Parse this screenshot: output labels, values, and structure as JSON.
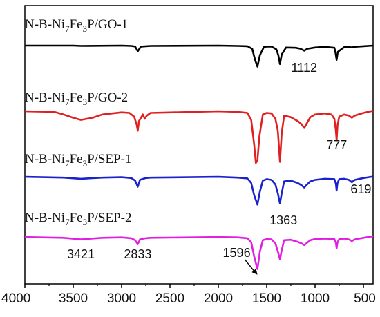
{
  "chart_data": {
    "type": "line",
    "title": "",
    "xlabel": "",
    "ylabel": "",
    "xlim": [
      4000,
      400
    ],
    "x_reversed": true,
    "x_ticks": [
      4000,
      3500,
      3000,
      2500,
      2000,
      1500,
      1000,
      500
    ],
    "y_ticks_shown": false,
    "grid": false,
    "legend": "labels-above-each-trace",
    "series": [
      {
        "label_parts": [
          "N-B-Ni",
          "7",
          "Fe",
          "3",
          "P/GO-1"
        ],
        "color": "#000000",
        "x": [
          4000,
          3500,
          3421,
          3000,
          2900,
          2860,
          2833,
          2800,
          2700,
          2000,
          1800,
          1700,
          1650,
          1620,
          1596,
          1570,
          1530,
          1500,
          1450,
          1400,
          1380,
          1363,
          1345,
          1300,
          1200,
          1150,
          1112,
          1080,
          1000,
          900,
          800,
          790,
          777,
          765,
          700,
          650,
          619,
          600,
          500,
          400
        ],
        "y": [
          1.0,
          1.0,
          0.99,
          1.0,
          0.99,
          0.97,
          0.82,
          0.97,
          0.99,
          1.0,
          0.99,
          0.98,
          0.9,
          0.55,
          0.34,
          0.7,
          0.95,
          0.97,
          0.97,
          0.88,
          0.7,
          0.42,
          0.72,
          0.94,
          0.93,
          0.9,
          0.84,
          0.9,
          0.94,
          0.96,
          0.93,
          0.8,
          0.55,
          0.8,
          0.95,
          0.96,
          0.94,
          0.96,
          0.98,
          1.0
        ]
      },
      {
        "label_parts": [
          "N-B-Ni",
          "7",
          "Fe",
          "3",
          "P/GO-2"
        ],
        "color": "#e02020",
        "x": [
          4000,
          3700,
          3600,
          3500,
          3421,
          3300,
          3200,
          3000,
          2920,
          2870,
          2845,
          2833,
          2820,
          2780,
          2760,
          2740,
          2700,
          2000,
          1800,
          1700,
          1660,
          1630,
          1612,
          1596,
          1575,
          1540,
          1500,
          1450,
          1410,
          1385,
          1363,
          1345,
          1320,
          1250,
          1180,
          1140,
          1112,
          1090,
          1050,
          1000,
          900,
          830,
          800,
          785,
          777,
          768,
          750,
          700,
          650,
          619,
          590,
          500,
          400
        ],
        "y": [
          0.96,
          0.95,
          0.9,
          0.84,
          0.8,
          0.84,
          0.9,
          0.94,
          0.93,
          0.86,
          0.72,
          0.6,
          0.78,
          0.9,
          0.82,
          0.88,
          0.93,
          0.96,
          0.95,
          0.93,
          0.8,
          0.35,
          0.0,
          0.05,
          0.5,
          0.9,
          0.93,
          0.92,
          0.82,
          0.6,
          0.02,
          0.55,
          0.88,
          0.85,
          0.78,
          0.72,
          0.65,
          0.72,
          0.85,
          0.9,
          0.92,
          0.9,
          0.82,
          0.6,
          0.42,
          0.7,
          0.86,
          0.9,
          0.88,
          0.84,
          0.88,
          0.93,
          0.97
        ]
      },
      {
        "label_parts": [
          "N-B-Ni",
          "7",
          "Fe",
          "3",
          "P/SEP-1"
        ],
        "color": "#1a22cc",
        "x": [
          4000,
          3600,
          3421,
          3200,
          3000,
          2900,
          2860,
          2833,
          2810,
          2750,
          2700,
          2000,
          1800,
          1700,
          1660,
          1630,
          1596,
          1570,
          1540,
          1500,
          1450,
          1410,
          1385,
          1363,
          1345,
          1320,
          1250,
          1180,
          1140,
          1112,
          1090,
          1050,
          1000,
          900,
          800,
          785,
          777,
          768,
          750,
          700,
          650,
          619,
          590,
          500,
          400
        ],
        "y": [
          0.98,
          0.96,
          0.93,
          0.96,
          0.97,
          0.95,
          0.88,
          0.72,
          0.9,
          0.95,
          0.96,
          0.98,
          0.96,
          0.94,
          0.82,
          0.5,
          0.25,
          0.6,
          0.88,
          0.92,
          0.9,
          0.78,
          0.55,
          0.28,
          0.55,
          0.86,
          0.88,
          0.82,
          0.76,
          0.7,
          0.76,
          0.86,
          0.9,
          0.93,
          0.92,
          0.8,
          0.62,
          0.82,
          0.92,
          0.93,
          0.9,
          0.84,
          0.9,
          0.95,
          0.99
        ]
      },
      {
        "label_parts": [
          "N-B-Ni",
          "7",
          "Fe",
          "3",
          "P/SEP-2"
        ],
        "color": "#e020e0",
        "x": [
          4000,
          3600,
          3421,
          3200,
          3000,
          2900,
          2860,
          2833,
          2810,
          2750,
          2700,
          2000,
          1800,
          1700,
          1660,
          1630,
          1596,
          1570,
          1540,
          1500,
          1450,
          1410,
          1385,
          1363,
          1345,
          1320,
          1250,
          1180,
          1140,
          1112,
          1090,
          1050,
          1000,
          900,
          800,
          785,
          777,
          768,
          750,
          700,
          650,
          619,
          590,
          500,
          400
        ],
        "y": [
          0.98,
          0.96,
          0.92,
          0.96,
          0.97,
          0.95,
          0.9,
          0.8,
          0.92,
          0.95,
          0.96,
          0.98,
          0.97,
          0.95,
          0.85,
          0.5,
          0.18,
          0.62,
          0.9,
          0.93,
          0.92,
          0.82,
          0.62,
          0.42,
          0.65,
          0.9,
          0.91,
          0.86,
          0.82,
          0.78,
          0.82,
          0.9,
          0.93,
          0.94,
          0.93,
          0.84,
          0.7,
          0.85,
          0.93,
          0.94,
          0.92,
          0.88,
          0.92,
          0.96,
          1.0
        ]
      }
    ],
    "annotations": [
      {
        "text": "1112",
        "x": 1112,
        "series": 0
      },
      {
        "text": "777",
        "x": 777,
        "series": 1
      },
      {
        "text": "619",
        "x": 619,
        "series": 2
      },
      {
        "text": "1363",
        "x": 1363,
        "series": 2
      },
      {
        "text": "3421",
        "x": 3421,
        "series": 3
      },
      {
        "text": "2833",
        "x": 2833,
        "series": 3
      },
      {
        "text": "1596",
        "x": 1596,
        "series": 3,
        "arrow": true
      }
    ]
  }
}
